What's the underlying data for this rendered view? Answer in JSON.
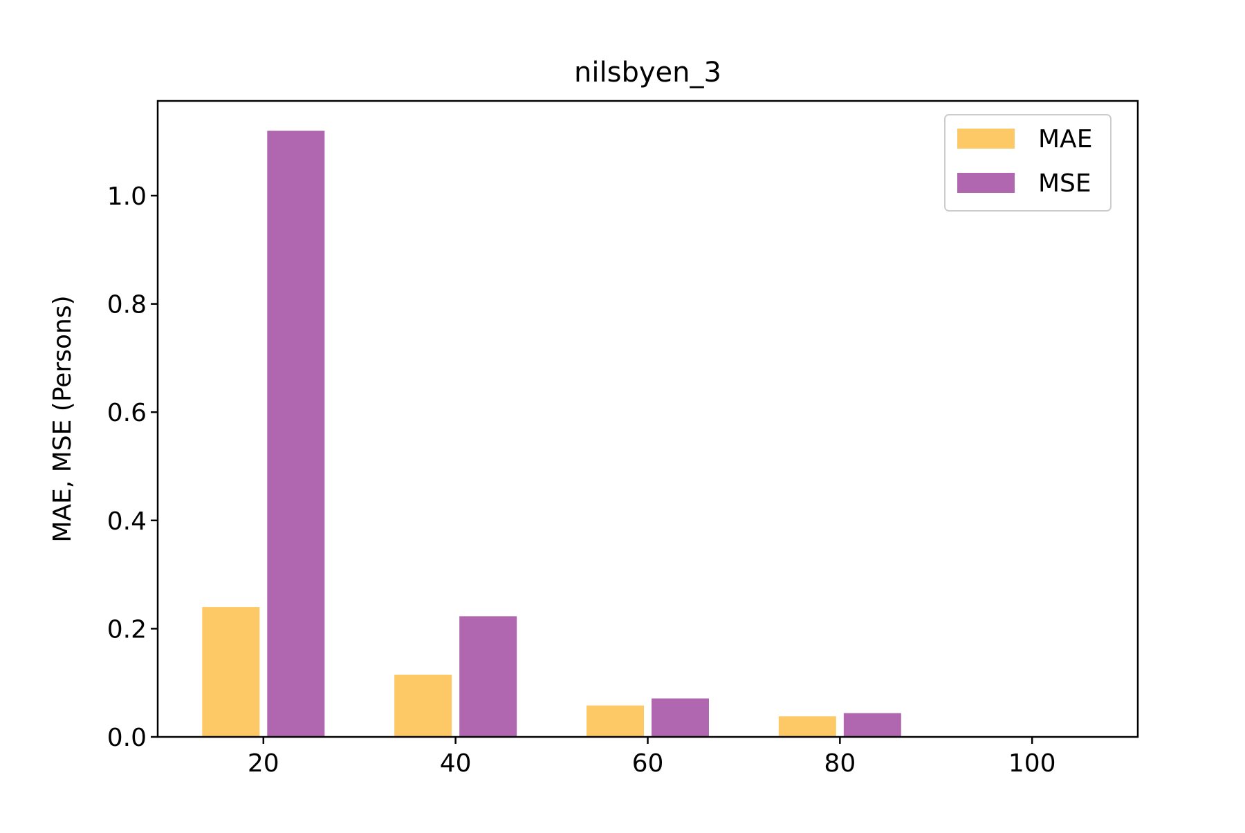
{
  "chart_data": {
    "type": "bar",
    "title": "nilsbyen_3",
    "xlabel": "",
    "ylabel": "MAE, MSE (Persons)",
    "categories": [
      20,
      40,
      60,
      80,
      100
    ],
    "xticks": [
      "20",
      "40",
      "60",
      "80",
      "100"
    ],
    "yticks": [
      "0.0",
      "0.2",
      "0.4",
      "0.6",
      "0.8",
      "1.0"
    ],
    "ylim": [
      0,
      1.175
    ],
    "xlim": [
      9,
      111
    ],
    "grid": false,
    "legend_position": "top-right",
    "series": [
      {
        "name": "MAE",
        "color": "#fdc966",
        "values": [
          0.24,
          0.115,
          0.058,
          0.038,
          0.0
        ]
      },
      {
        "name": "MSE",
        "color": "#b067b0",
        "values": [
          1.12,
          0.223,
          0.071,
          0.044,
          0.0
        ]
      }
    ]
  }
}
